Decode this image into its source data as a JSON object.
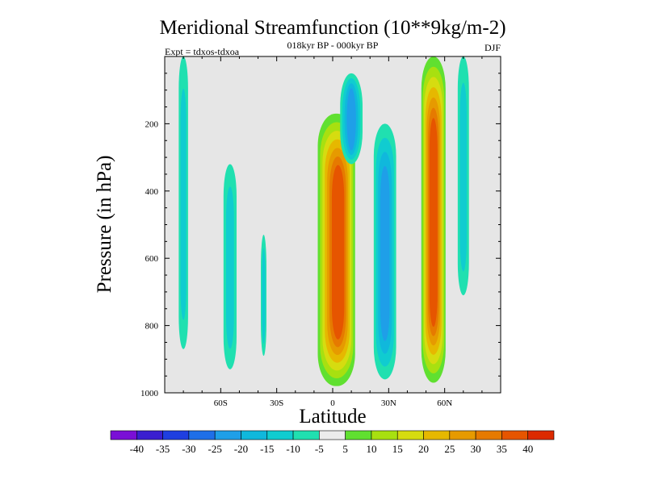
{
  "chart_data": {
    "type": "contour",
    "title": "Meridional Streamfunction (10**9kg/m-2)",
    "subtitle_center": "018kyr BP - 000kyr BP",
    "subtitle_left": "Expt = tdxos-tdxoa",
    "subtitle_right": "DJF",
    "xlabel": "Latitude",
    "ylabel": "Pressure (in hPa)",
    "x_ticks": [
      {
        "value": -60,
        "label": "60S"
      },
      {
        "value": -30,
        "label": "30S"
      },
      {
        "value": 0,
        "label": "0"
      },
      {
        "value": 30,
        "label": "30N"
      },
      {
        "value": 60,
        "label": "60N"
      }
    ],
    "y_ticks": [
      {
        "value": 200,
        "label": "200"
      },
      {
        "value": 400,
        "label": "400"
      },
      {
        "value": 600,
        "label": "600"
      },
      {
        "value": 800,
        "label": "800"
      },
      {
        "value": 1000,
        "label": "1000"
      }
    ],
    "xlim": [
      -90,
      90
    ],
    "ylim": [
      1000,
      0
    ],
    "background_color": "#e6e6e6",
    "colorbar": {
      "colors": [
        "#7a0fd6",
        "#3a1fd0",
        "#1f3fe0",
        "#1f6fe8",
        "#1f9fe8",
        "#10b8dc",
        "#10ccd0",
        "#20e0b0",
        "#ececec",
        "#60e030",
        "#a8e010",
        "#d6dc10",
        "#e6b800",
        "#e69a00",
        "#e67a00",
        "#e65500",
        "#dc2a00"
      ],
      "labels": [
        "-40",
        "-35",
        "-30",
        "-25",
        "-20",
        "-15",
        "-10",
        "-5",
        "5",
        "10",
        "15",
        "20",
        "25",
        "30",
        "35",
        "40"
      ]
    },
    "features": [
      {
        "name": "southern-hadley-cell",
        "center_lat": 2,
        "p_top": 170,
        "p_bottom": 980,
        "peak": 40,
        "core_lat": 3,
        "core_p": 600
      },
      {
        "name": "northern-positive-column",
        "center_lat": 54,
        "p_top": 0,
        "p_bottom": 970,
        "peak": 40
      },
      {
        "name": "negative-column-70S",
        "center_lat": -80,
        "p_top": 0,
        "p_bottom": 870,
        "peak": -10
      },
      {
        "name": "negative-column-55S",
        "center_lat": -55,
        "p_top": 320,
        "p_bottom": 930,
        "peak": -10
      },
      {
        "name": "negative-column-37S",
        "center_lat": -37,
        "p_top": 530,
        "p_bottom": 890,
        "peak": -10
      },
      {
        "name": "negative-upper-cell-10N",
        "center_lat": 10,
        "p_top": 50,
        "p_bottom": 320,
        "peak": -20
      },
      {
        "name": "negative-column-28N",
        "center_lat": 28,
        "p_top": 200,
        "p_bottom": 960,
        "peak": -20
      },
      {
        "name": "negative-column-70N",
        "center_lat": 70,
        "p_top": 0,
        "p_bottom": 710,
        "peak": -10
      }
    ]
  }
}
